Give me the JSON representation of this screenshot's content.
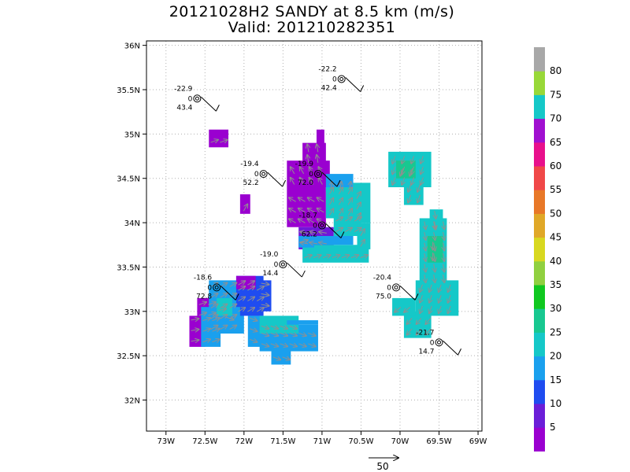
{
  "chart_data": {
    "type": "heatmap",
    "title": "20121028H2 SANDY at 8.5 km (m/s)",
    "subtitle": "Valid: 201210282351",
    "xlabel": "",
    "ylabel": "",
    "xlim": [
      -73.25,
      -68.95
    ],
    "ylim": [
      31.65,
      36.05
    ],
    "x_ticks": [
      -73,
      -72.5,
      -72,
      -71.5,
      -71,
      -70.5,
      -70,
      -69.5,
      -69
    ],
    "x_tick_labels": [
      "73W",
      "72.5W",
      "72W",
      "71.5W",
      "71W",
      "70.5W",
      "70W",
      "69.5W",
      "69W"
    ],
    "y_ticks": [
      32,
      32.5,
      33,
      33.5,
      34,
      34.5,
      35,
      35.5,
      36
    ],
    "y_tick_labels": [
      "32N",
      "32.5N",
      "33N",
      "33.5N",
      "34N",
      "34.5N",
      "35N",
      "35.5N",
      "36N"
    ],
    "grid": true,
    "colorbar": {
      "labels": [
        "5",
        "10",
        "15",
        "20",
        "25",
        "30",
        "35",
        "40",
        "45",
        "50",
        "55",
        "60",
        "65",
        "70",
        "75",
        "80"
      ],
      "colors": [
        "#9a00d0",
        "#6b1ed8",
        "#1f4cf0",
        "#1aa0ee",
        "#15c8c8",
        "#18c890",
        "#10c820",
        "#90d040",
        "#d8d820",
        "#e0a828",
        "#e87828",
        "#f04848",
        "#e8108c",
        "#a010d0",
        "#15c8c8",
        "#98d838",
        "#a8a8a8"
      ]
    },
    "reference_vector": {
      "label": "50"
    },
    "stations": [
      {
        "lon": -72.6,
        "lat": 35.4,
        "top": "-22.9",
        "mid": "0",
        "bottom": "43.4"
      },
      {
        "lon": -70.75,
        "lat": 35.62,
        "top": "-22.2",
        "mid": "0",
        "bottom": "42.4"
      },
      {
        "lon": -71.75,
        "lat": 34.55,
        "top": "-19.4",
        "mid": "0",
        "bottom": "52.2"
      },
      {
        "lon": -71.05,
        "lat": 34.55,
        "top": "-19.9",
        "mid": "0",
        "bottom": "72.0"
      },
      {
        "lon": -71.0,
        "lat": 33.97,
        "top": "-18.7",
        "mid": "0",
        "bottom": "62.2"
      },
      {
        "lon": -71.5,
        "lat": 33.53,
        "top": "-19.0",
        "mid": "0",
        "bottom": "14.4"
      },
      {
        "lon": -72.35,
        "lat": 33.27,
        "top": "-18.6",
        "mid": "0",
        "bottom": "72.8"
      },
      {
        "lon": -70.05,
        "lat": 33.27,
        "top": "-20.4",
        "mid": "0",
        "bottom": "75.0"
      },
      {
        "lon": -69.5,
        "lat": 32.65,
        "top": "-21.7",
        "mid": "0",
        "bottom": "14.7"
      }
    ]
  }
}
